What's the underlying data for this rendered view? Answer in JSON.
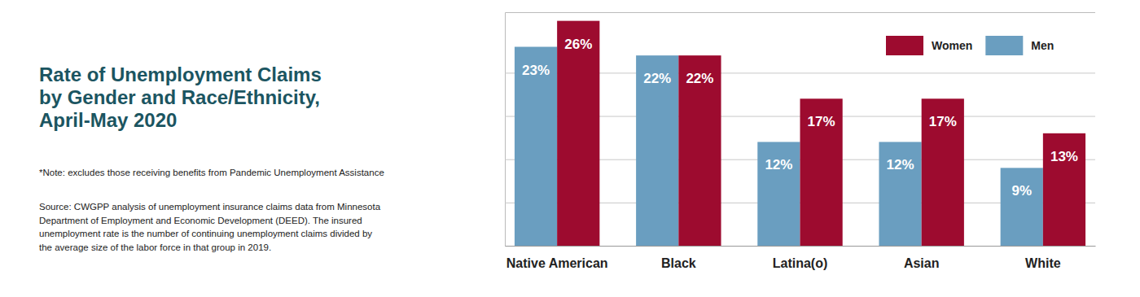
{
  "chart_data": {
    "type": "bar",
    "title": "Rate of Unemployment Claims\nby Gender and Race/Ethnicity,\nApril-May 2020",
    "note": "*Note: excludes those receiving benefits from Pandemic Unemployment Assistance",
    "source": "Source: CWGPP analysis of unemployment insurance claims data from Minnesota\nDepartment of Employment and Economic Development (DEED). The insured\nunemployment rate is the number of continuing unemployment claims divided by\nthe average size of the labor force in that group in 2019.",
    "categories": [
      "Native American",
      "Black",
      "Latina(o)",
      "Asian",
      "White"
    ],
    "series": [
      {
        "name": "Men",
        "color": "#6a9ec0",
        "values": [
          23,
          22,
          12,
          12,
          9
        ],
        "value_labels": [
          "23%",
          "22%",
          "12%",
          "12%",
          "9%"
        ]
      },
      {
        "name": "Women",
        "color": "#9d0b2f",
        "values": [
          26,
          22,
          17,
          17,
          13
        ],
        "value_labels": [
          "26%",
          "22%",
          "17%",
          "17%",
          "13%"
        ]
      }
    ],
    "ylim": [
      0,
      27
    ],
    "yticks": [
      0,
      5,
      10,
      15,
      20
    ],
    "grid": true,
    "legend": "upper right",
    "data_labels": true,
    "tick_labels": "x"
  }
}
